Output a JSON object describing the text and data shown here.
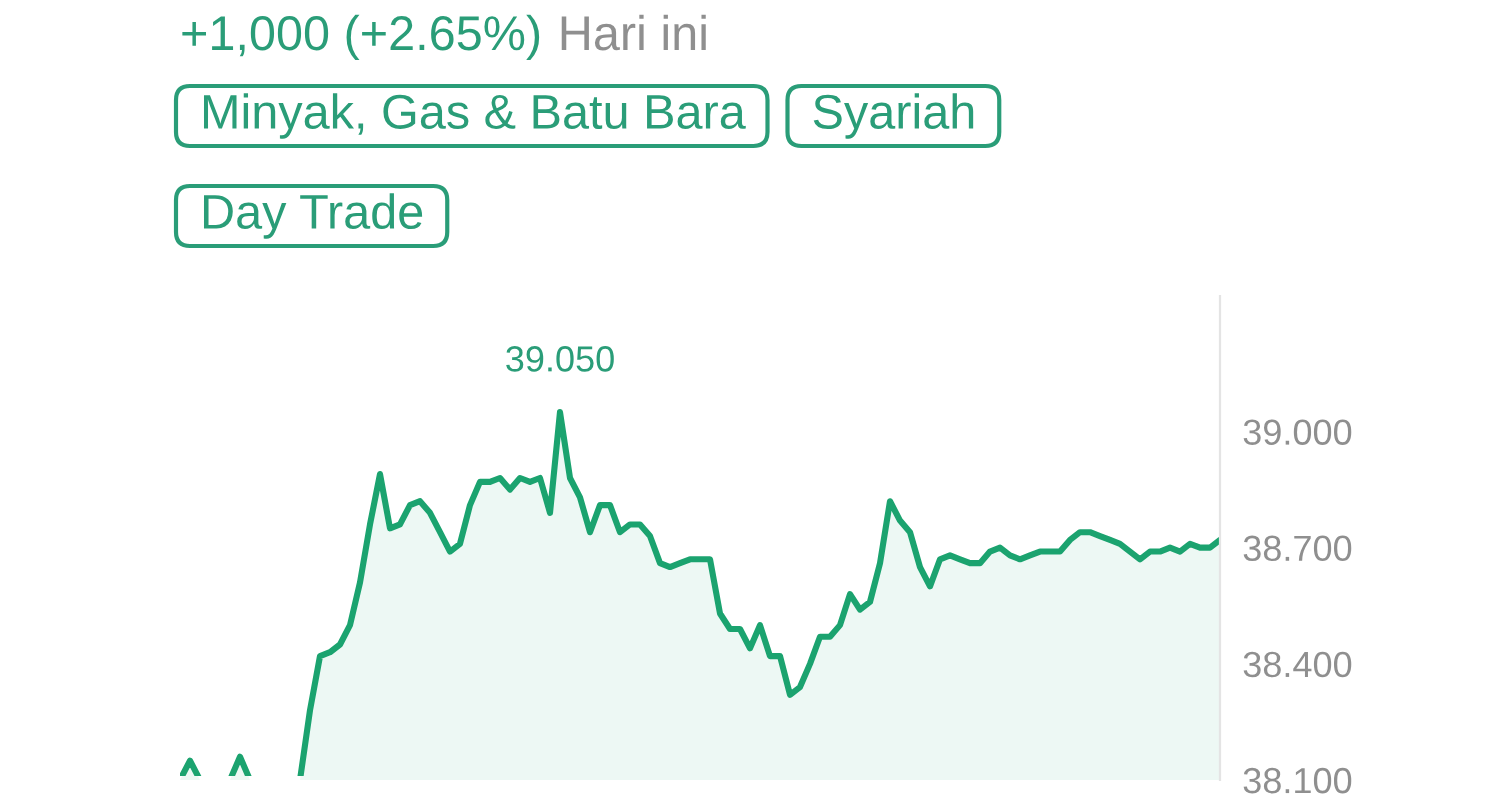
{
  "chart_data": {
    "type": "area",
    "subtitle": "+1,000 (+2.65%)",
    "annotations": [
      "Hari ini",
      "Minyak, Gas & Batu Bara",
      "Syariah",
      "Day Trade",
      {
        "text": "39.050",
        "y": 39.05
      }
    ],
    "categories": [
      null,
      null,
      null,
      null,
      null,
      null,
      null,
      null,
      null,
      null,
      null,
      null,
      null,
      null,
      null,
      null,
      null,
      null,
      null,
      null,
      null,
      null,
      null,
      null,
      null,
      null,
      null,
      null,
      null,
      null,
      null,
      null,
      null,
      null,
      null,
      null,
      null,
      null,
      null,
      null,
      null,
      null,
      null,
      null,
      null,
      null,
      null,
      null,
      null,
      null,
      null,
      null,
      null,
      null,
      null,
      null,
      null,
      null,
      null,
      null,
      null,
      null,
      null,
      null,
      null,
      null,
      null,
      null,
      null,
      null,
      null,
      null,
      null,
      null,
      null,
      null,
      null,
      null,
      null,
      null,
      null,
      null,
      null,
      null,
      null,
      null,
      null,
      null,
      null,
      null,
      null,
      null,
      null,
      null,
      null,
      null,
      null,
      null,
      null,
      null,
      null,
      null,
      null,
      null,
      null
    ],
    "series": [
      {
        "color": "#1ba36f",
        "values": [
          38.1,
          38.15,
          38.1,
          null,
          null,
          38.1,
          38.16,
          38.1,
          null,
          null,
          null,
          null,
          38.1,
          38.28,
          38.42,
          38.43,
          38.45,
          38.5,
          38.61,
          38.76,
          38.89,
          38.75,
          38.76,
          38.81,
          38.82,
          38.79,
          38.74,
          38.69,
          38.71,
          38.81,
          38.87,
          38.87,
          38.88,
          38.85,
          38.88,
          38.87,
          38.88,
          38.79,
          39.05,
          38.88,
          38.83,
          38.74,
          38.81,
          38.81,
          38.74,
          38.76,
          38.76,
          38.73,
          38.66,
          38.65,
          38.66,
          38.67,
          38.67,
          38.67,
          38.53,
          38.49,
          38.49,
          38.44,
          38.5,
          38.42,
          38.42,
          38.32,
          38.34,
          38.4,
          38.47,
          38.47,
          38.5,
          38.58,
          38.54,
          38.56,
          38.66,
          38.82,
          38.77,
          38.74,
          38.65,
          38.6,
          38.67,
          38.68,
          38.67,
          38.66,
          38.66,
          38.69,
          38.7,
          38.68,
          38.67,
          38.68,
          38.69,
          38.69,
          38.69,
          38.72,
          38.74,
          38.74,
          38.73,
          38.72,
          38.71,
          38.69,
          38.67,
          38.69,
          38.69,
          38.7,
          38.69,
          38.71,
          38.7,
          38.7,
          38.72
        ]
      }
    ],
    "ylim": [
      38.1,
      39.35
    ],
    "yticks": [
      {
        "value": 38.1,
        "label": "38.100"
      },
      {
        "value": 38.4,
        "label": "38.400"
      },
      {
        "value": 38.7,
        "label": "38.700"
      },
      {
        "value": 39.0,
        "label": "39.000"
      }
    ],
    "tick_labels": "y"
  }
}
